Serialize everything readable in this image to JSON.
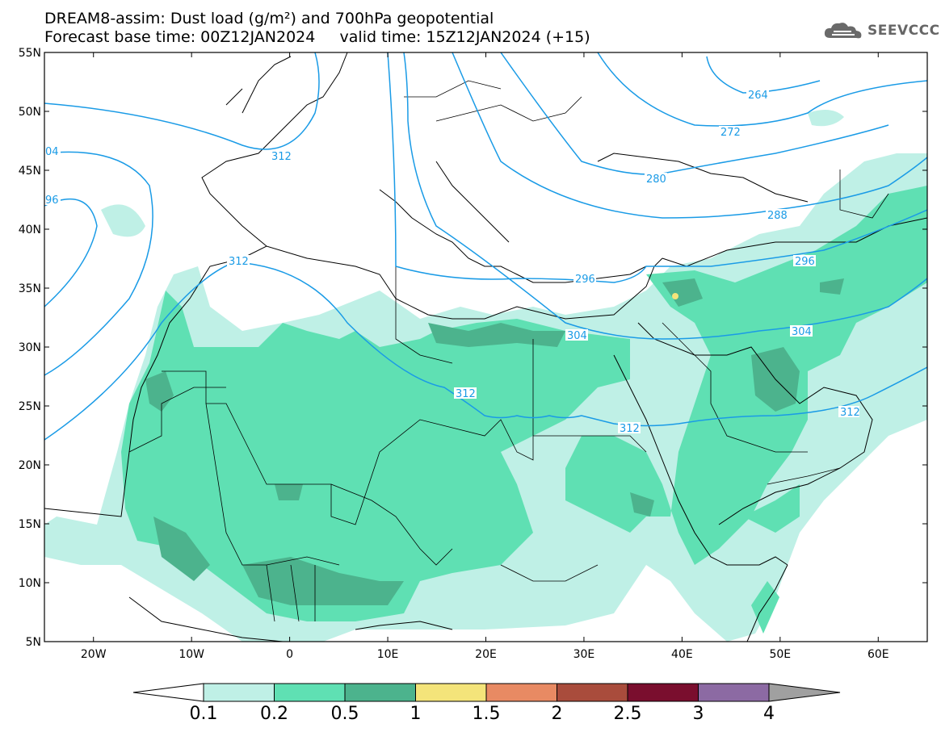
{
  "title": {
    "line1": "DREAM8-assim: Dust load (g/m²) and 700hPa geopotential",
    "line2": "Forecast base time: 00Z12JAN2024     valid time: 15Z12JAN2024 (+15)"
  },
  "logo": {
    "text": "SEEVCCC",
    "icon": "cloud-icon"
  },
  "map": {
    "lon_range": [
      -25,
      65
    ],
    "lat_range": [
      5,
      55
    ],
    "lat_ticks": [
      "55N",
      "50N",
      "45N",
      "40N",
      "35N",
      "30N",
      "25N",
      "20N",
      "15N",
      "10N",
      "5N"
    ],
    "lon_ticks": [
      "20W",
      "10W",
      "0",
      "10E",
      "20E",
      "30E",
      "40E",
      "50E",
      "60E"
    ],
    "contour_labels": [
      "04",
      "96",
      "312",
      "312",
      "312",
      "312",
      "296",
      "304",
      "304",
      "264",
      "272",
      "280",
      "288",
      "296",
      "312"
    ]
  },
  "legend": {
    "labels": [
      "0.1",
      "0.2",
      "0.5",
      "1",
      "1.5",
      "2",
      "2.5",
      "3",
      "4"
    ],
    "colors": [
      "#ffffff",
      "#bff0e6",
      "#5fe0b3",
      "#4cb38d",
      "#f4e47a",
      "#e88a63",
      "#a94c3c",
      "#7a0e2e",
      "#8c6aa3",
      "#a0a0a0"
    ]
  },
  "colors": {
    "dust_light": "#bff0e6",
    "dust_medium": "#5fe0b3",
    "dust_dark": "#4cb38d",
    "contour": "#1a9be6"
  }
}
